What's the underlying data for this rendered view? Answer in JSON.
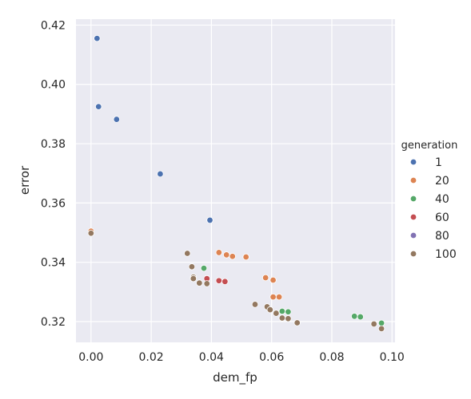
{
  "chart_data": {
    "type": "scatter",
    "xlabel": "dem_fp",
    "ylabel": "error",
    "xlim": [
      -0.005,
      0.101
    ],
    "ylim": [
      0.313,
      0.422
    ],
    "xticks": [
      "0.00",
      "0.02",
      "0.04",
      "0.06",
      "0.08",
      "0.10"
    ],
    "yticks": [
      "0.32",
      "0.34",
      "0.36",
      "0.38",
      "0.40",
      "0.42"
    ],
    "grid": true,
    "legend": {
      "title": "generation",
      "placement": "right",
      "entries": [
        {
          "label": "1",
          "color": "#4c72b0"
        },
        {
          "label": "20",
          "color": "#dd8452"
        },
        {
          "label": "40",
          "color": "#55a868"
        },
        {
          "label": "60",
          "color": "#c44e52"
        },
        {
          "label": "80",
          "color": "#8172b3"
        },
        {
          "label": "100",
          "color": "#937860"
        }
      ]
    },
    "series": [
      {
        "name": "1",
        "color": "#4c72b0",
        "points": [
          [
            0.002,
            0.4155
          ],
          [
            0.0025,
            0.3925
          ],
          [
            0.0085,
            0.3882
          ],
          [
            0.023,
            0.3698
          ],
          [
            0.0395,
            0.3542
          ]
        ]
      },
      {
        "name": "20",
        "color": "#dd8452",
        "points": [
          [
            0.0,
            0.3505
          ],
          [
            0.0425,
            0.3433
          ],
          [
            0.045,
            0.3425
          ],
          [
            0.047,
            0.342
          ],
          [
            0.0515,
            0.3418
          ],
          [
            0.058,
            0.3348
          ],
          [
            0.0605,
            0.334
          ],
          [
            0.0605,
            0.3283
          ],
          [
            0.0625,
            0.3283
          ]
        ]
      },
      {
        "name": "40",
        "color": "#55a868",
        "points": [
          [
            0.0375,
            0.338
          ],
          [
            0.0635,
            0.3235
          ],
          [
            0.0655,
            0.3233
          ],
          [
            0.0875,
            0.3218
          ],
          [
            0.0895,
            0.3216
          ],
          [
            0.0965,
            0.3195
          ]
        ]
      },
      {
        "name": "60",
        "color": "#c44e52",
        "points": [
          [
            0.0385,
            0.3345
          ],
          [
            0.0425,
            0.3338
          ],
          [
            0.0445,
            0.3335
          ]
        ]
      },
      {
        "name": "80",
        "color": "#8172b3",
        "points": []
      },
      {
        "name": "100",
        "color": "#937860",
        "points": [
          [
            0.0,
            0.3498
          ],
          [
            0.032,
            0.343
          ],
          [
            0.0335,
            0.3385
          ],
          [
            0.034,
            0.335
          ],
          [
            0.034,
            0.3345
          ],
          [
            0.036,
            0.333
          ],
          [
            0.0385,
            0.3328
          ],
          [
            0.0545,
            0.3258
          ],
          [
            0.0585,
            0.325
          ],
          [
            0.0595,
            0.324
          ],
          [
            0.0615,
            0.3228
          ],
          [
            0.0635,
            0.3212
          ],
          [
            0.0655,
            0.321
          ],
          [
            0.0685,
            0.3196
          ],
          [
            0.094,
            0.3192
          ],
          [
            0.0965,
            0.3176
          ]
        ]
      }
    ]
  }
}
